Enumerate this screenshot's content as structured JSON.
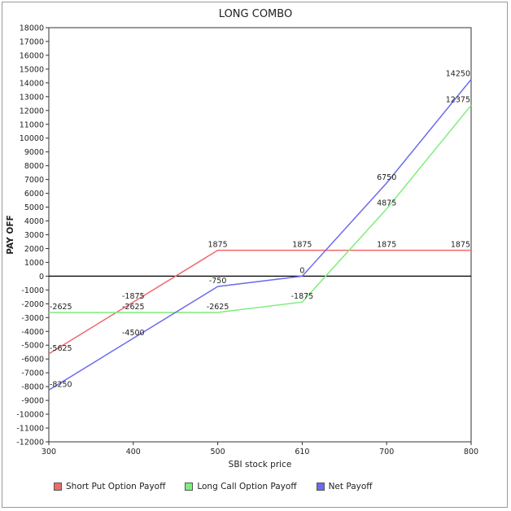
{
  "chart_data": {
    "type": "line",
    "title": "LONG COMBO",
    "xlabel": "SBI stock price",
    "ylabel": "PAY OFF",
    "categories": [
      "300",
      "400",
      "500",
      "610",
      "700",
      "800"
    ],
    "ylim": [
      -12000,
      18000
    ],
    "ytick_step": 1000,
    "grid": false,
    "legend_position": "bottom",
    "series": [
      {
        "name": "Short Put Option Payoff",
        "color": "#f06a6a",
        "values": [
          -5625,
          -1875,
          1875,
          1875,
          1875,
          1875
        ],
        "labels": [
          "-5625",
          "-1875",
          "1875",
          "1875",
          "1875",
          "1875"
        ]
      },
      {
        "name": "Long Call Option Payoff",
        "color": "#7cee7c",
        "values": [
          -2625,
          -2625,
          -2625,
          -1875,
          4875,
          12375
        ],
        "labels": [
          "-2625",
          "-2625",
          "-2625",
          "-1875",
          "4875",
          "12375"
        ]
      },
      {
        "name": "Net Payoff",
        "color": "#6b6bee",
        "values": [
          -8250,
          -4500,
          -750,
          0,
          6750,
          14250
        ],
        "labels": [
          "-8250",
          "-4500",
          "-750",
          "0",
          "6750",
          "14250"
        ]
      }
    ]
  }
}
